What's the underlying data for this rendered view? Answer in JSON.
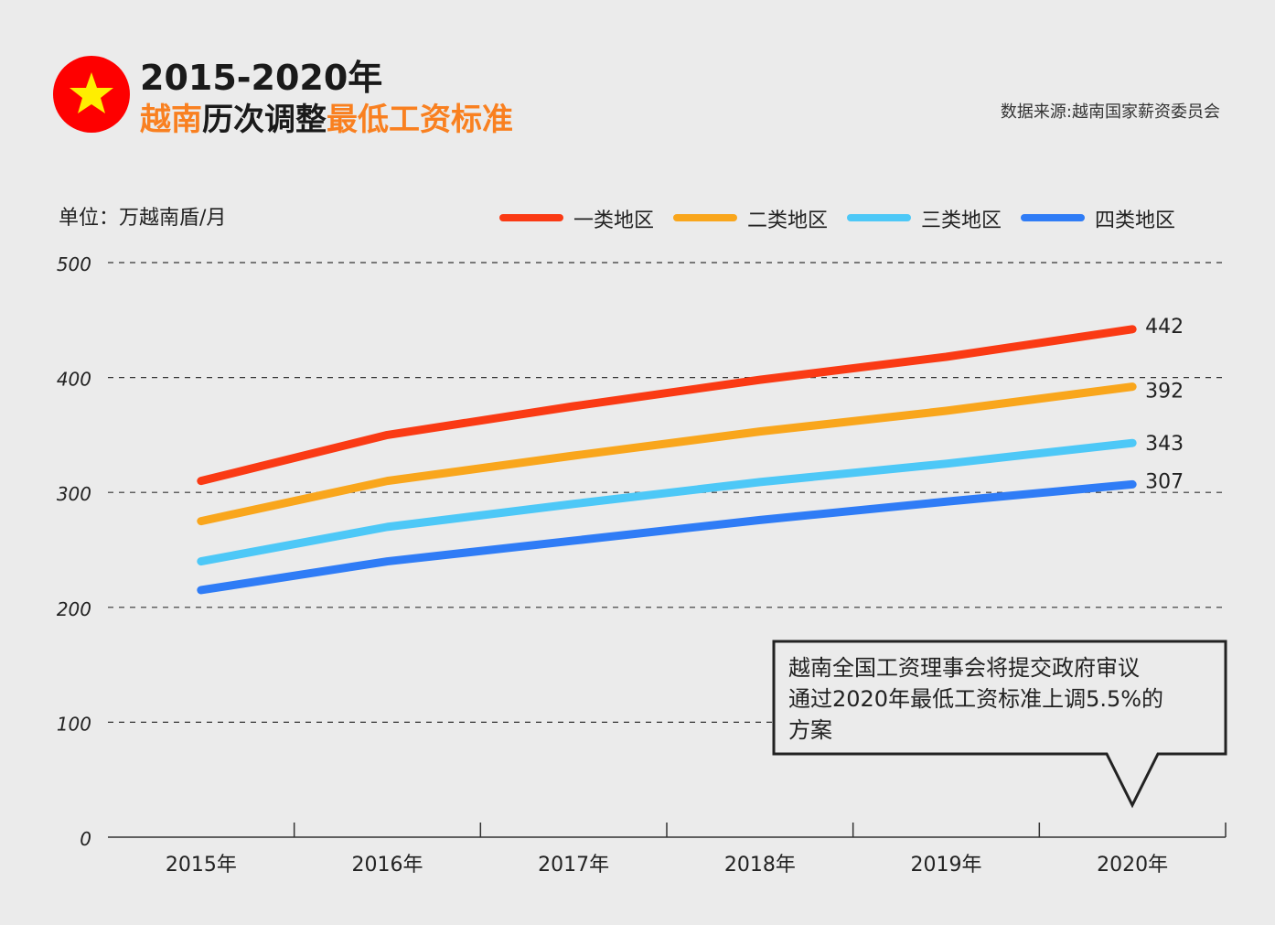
{
  "header": {
    "title_line1": "2015-2020年",
    "title_line2": [
      {
        "text": "越南",
        "color": "#f98020"
      },
      {
        "text": "历次调整",
        "color": "#1a1a1a"
      },
      {
        "text": "最低工资标准",
        "color": "#f98020"
      }
    ],
    "flag_icon": "vietnam-flag-icon",
    "source": "数据来源:越南国家薪资委员会"
  },
  "chart_data": {
    "type": "line",
    "unit_label": "单位：万越南盾/月",
    "categories": [
      "2015年",
      "2016年",
      "2017年",
      "2018年",
      "2019年",
      "2020年"
    ],
    "series": [
      {
        "name": "一类地区",
        "color": "#fa3a14",
        "values": [
          310,
          350,
          375,
          398,
          418,
          442
        ]
      },
      {
        "name": "二类地区",
        "color": "#f9a61c",
        "values": [
          275,
          310,
          332,
          353,
          371,
          392
        ]
      },
      {
        "name": "三类地区",
        "color": "#4dc8f7",
        "values": [
          240,
          270,
          290,
          309,
          325,
          343
        ]
      },
      {
        "name": "四类地区",
        "color": "#2f7cf6",
        "values": [
          215,
          240,
          258,
          276,
          292,
          307
        ]
      }
    ],
    "end_labels": [
      "442",
      "392",
      "343",
      "307"
    ],
    "yticks": [
      "0",
      "100",
      "200",
      "300",
      "400",
      "500"
    ],
    "ylim": [
      0,
      500
    ],
    "grid": "dashed horizontal",
    "legend": "top-right",
    "annotation": "越南全国工资理事会将提交政府审议通过2020年最低工资标准上调5.5%的方案",
    "annotation_lines": [
      "越南全国工资理事会将提交政府审议",
      "通过2020年最低工资标准上调5.5%的",
      "方案"
    ]
  }
}
